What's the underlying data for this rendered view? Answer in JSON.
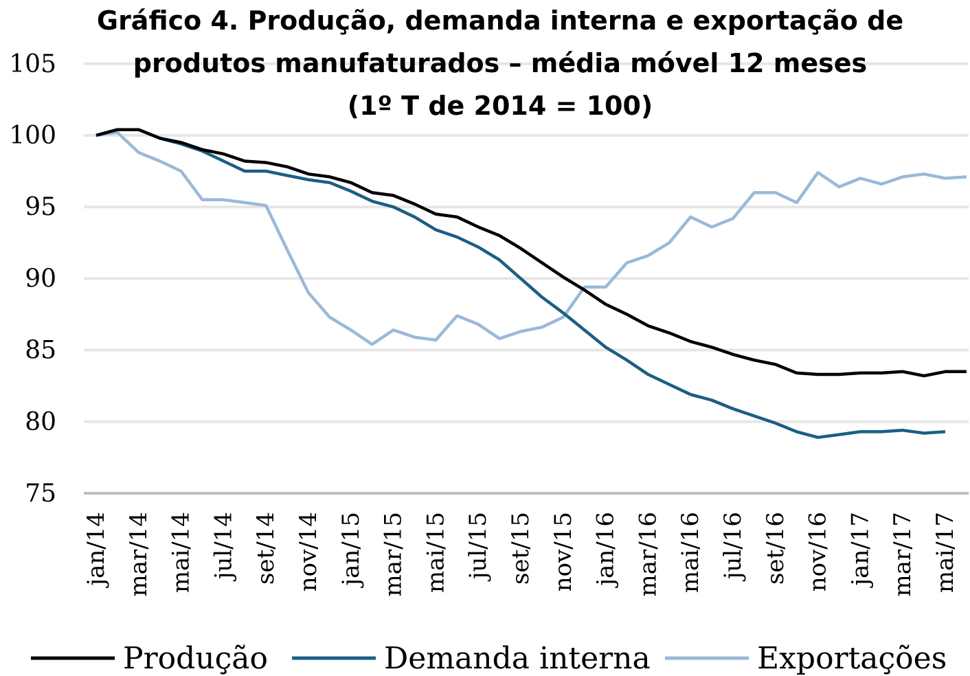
{
  "chart_data": {
    "type": "line",
    "title": [
      "Gráfico 4. Produção, demanda interna e exportação de",
      "produtos manufaturados – média móvel 12 meses",
      "(1º T de 2014 = 100)"
    ],
    "categories": [
      "jan/14",
      null,
      "mar/14",
      null,
      "mai/14",
      null,
      "jul/14",
      null,
      "set/14",
      null,
      "nov/14",
      null,
      "jan/15",
      null,
      "mar/15",
      null,
      "mai/15",
      null,
      "jul/15",
      null,
      "set/15",
      null,
      "nov/15",
      null,
      "jan/16",
      null,
      "mar/16",
      null,
      "mai/16",
      null,
      "jul/16",
      null,
      "set/16",
      null,
      "nov/16",
      null,
      "jan/17",
      null,
      "mar/17",
      null,
      "mai/17",
      null
    ],
    "series": [
      {
        "name": "Produção",
        "color": "#000000",
        "values": [
          100,
          100.4,
          100.4,
          99.8,
          99.5,
          99.0,
          98.7,
          98.2,
          98.1,
          97.8,
          97.3,
          97.1,
          96.7,
          96.0,
          95.8,
          95.2,
          94.5,
          94.3,
          93.6,
          93.0,
          92.1,
          91.1,
          90.1,
          89.2,
          88.2,
          87.5,
          86.7,
          86.2,
          85.6,
          85.2,
          84.7,
          84.3,
          84.0,
          83.4,
          83.3,
          83.3,
          83.4,
          83.4,
          83.5,
          83.2,
          83.5,
          83.5
        ]
      },
      {
        "name": "Demanda interna",
        "color": "#1b5e85",
        "values": [
          100,
          100.4,
          100.4,
          99.8,
          99.4,
          98.9,
          98.2,
          97.5,
          97.5,
          97.2,
          96.9,
          96.7,
          96.1,
          95.4,
          95.0,
          94.3,
          93.4,
          92.9,
          92.2,
          91.3,
          90.0,
          88.7,
          87.6,
          86.4,
          85.2,
          84.3,
          83.3,
          82.6,
          81.9,
          81.5,
          80.9,
          80.4,
          79.9,
          79.3,
          78.9,
          79.1,
          79.3,
          79.3,
          79.4,
          79.2,
          79.3,
          null
        ]
      },
      {
        "name": "Exportações",
        "color": "#9bb9d8",
        "values": [
          100,
          100.2,
          98.8,
          98.2,
          97.5,
          95.5,
          95.5,
          95.3,
          95.1,
          92.0,
          89.0,
          87.3,
          86.4,
          85.4,
          86.4,
          85.9,
          85.7,
          87.4,
          86.8,
          85.8,
          86.3,
          86.6,
          87.3,
          89.4,
          89.4,
          91.1,
          91.6,
          92.5,
          94.3,
          93.6,
          94.2,
          96.0,
          96.0,
          95.3,
          97.4,
          96.4,
          97.0,
          96.6,
          97.1,
          97.3,
          97.0,
          97.1
        ]
      }
    ],
    "ylim": [
      75,
      105
    ],
    "yticks": [
      75,
      80,
      85,
      90,
      95,
      100,
      105
    ],
    "grid": true,
    "legend": "bottom"
  }
}
